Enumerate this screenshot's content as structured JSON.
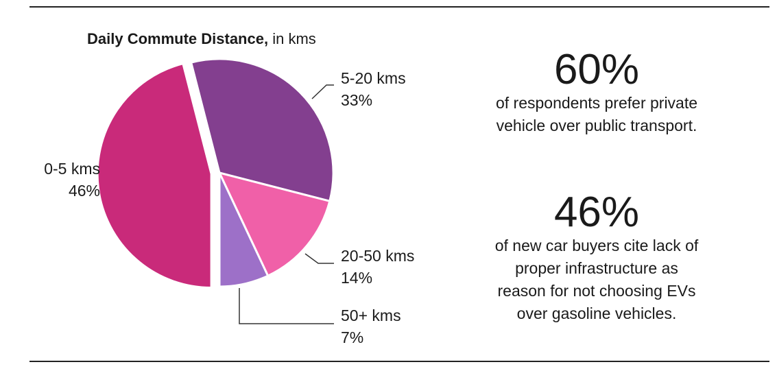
{
  "chart_data": {
    "type": "pie",
    "title": "Daily Commute Distance,",
    "subtitle": "in kms",
    "slices": [
      {
        "label": "5-20 kms",
        "value": 33,
        "pct_text": "33%",
        "color": "#833f8f"
      },
      {
        "label": "20-50 kms",
        "value": 14,
        "pct_text": "14%",
        "color": "#f060a8"
      },
      {
        "label": "50+ kms",
        "value": 7,
        "pct_text": "7%",
        "color": "#9d70c8"
      },
      {
        "label": "0-5 kms",
        "value": 46,
        "pct_text": "46%",
        "color": "#c92a7a",
        "exploded": true
      }
    ]
  },
  "stats": [
    {
      "value": "60%",
      "text": "of respondents prefer private vehicle over public transport."
    },
    {
      "value": "46%",
      "text": "of new car buyers cite lack of proper infrastructure as reason for not choosing EVs over gasoline vehicles."
    }
  ],
  "colors": {
    "leader": "#333333",
    "rule": "#222222"
  }
}
